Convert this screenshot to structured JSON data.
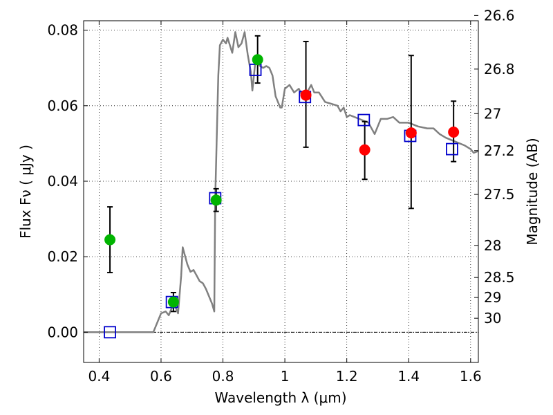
{
  "chart_data": {
    "type": "scatter",
    "xlabel": "Wavelength  λ (μm)",
    "ylabel": "Flux  Fν  ( μJy )",
    "y2label": "Magnitude (AB)",
    "xlim": [
      0.35,
      1.625
    ],
    "ylim": [
      -0.008,
      0.0825
    ],
    "grid": true,
    "x_ticks": [
      0.4,
      0.6,
      0.8,
      1.0,
      1.2,
      1.4,
      1.6
    ],
    "x_tick_labels": [
      "0.4",
      "0.6",
      "0.8",
      "1",
      "1.2",
      "1.4",
      "1.6"
    ],
    "y_ticks": [
      0.0,
      0.02,
      0.04,
      0.06,
      0.08
    ],
    "y_tick_labels": [
      "0.00",
      "0.02",
      "0.04",
      "0.06",
      "0.08"
    ],
    "y2_ticks": [
      {
        "flux": 0.0839,
        "label": "26.6"
      },
      {
        "flux": 0.0697,
        "label": "26.8"
      },
      {
        "flux": 0.0579,
        "label": "27"
      },
      {
        "flux": 0.0481,
        "label": "27.2"
      },
      {
        "flux": 0.0365,
        "label": "27.5"
      },
      {
        "flux": 0.023,
        "label": "28"
      },
      {
        "flux": 0.0145,
        "label": "28.5"
      },
      {
        "flux": 0.0092,
        "label": "29"
      },
      {
        "flux": 0.0037,
        "label": "30"
      }
    ],
    "zero_line": 0.0,
    "colors": {
      "template": "#808080",
      "model": "#0000cc",
      "green": "#00b400",
      "red": "#ff0000",
      "errorbar": "#000000"
    },
    "template_spectrum": {
      "x": [
        0.35,
        0.575,
        0.6,
        0.615,
        0.625,
        0.635,
        0.645,
        0.655,
        0.665,
        0.67,
        0.675,
        0.685,
        0.695,
        0.705,
        0.715,
        0.725,
        0.735,
        0.745,
        0.755,
        0.765,
        0.772,
        0.775,
        0.785,
        0.79,
        0.8,
        0.81,
        0.815,
        0.83,
        0.84,
        0.85,
        0.86,
        0.87,
        0.88,
        0.89,
        0.895,
        0.905,
        0.92,
        0.93,
        0.94,
        0.95,
        0.96,
        0.97,
        0.985,
        0.99,
        1.0,
        1.015,
        1.03,
        1.045,
        1.06,
        1.075,
        1.085,
        1.095,
        1.11,
        1.13,
        1.15,
        1.17,
        1.18,
        1.19,
        1.2,
        1.21,
        1.24,
        1.27,
        1.29,
        1.31,
        1.33,
        1.35,
        1.37,
        1.4,
        1.43,
        1.46,
        1.48,
        1.5,
        1.52,
        1.55,
        1.58,
        1.6,
        1.61,
        1.625
      ],
      "y": [
        0.0,
        0.0,
        0.005,
        0.0055,
        0.0045,
        0.0065,
        0.007,
        0.005,
        0.015,
        0.0225,
        0.021,
        0.018,
        0.016,
        0.0165,
        0.015,
        0.0135,
        0.013,
        0.0115,
        0.0095,
        0.0075,
        0.0055,
        0.035,
        0.068,
        0.076,
        0.0775,
        0.0765,
        0.078,
        0.074,
        0.0795,
        0.0755,
        0.0765,
        0.0795,
        0.0735,
        0.069,
        0.064,
        0.072,
        0.0705,
        0.07,
        0.0705,
        0.07,
        0.068,
        0.0625,
        0.0595,
        0.0595,
        0.0645,
        0.0655,
        0.0635,
        0.0645,
        0.062,
        0.064,
        0.0655,
        0.0635,
        0.0635,
        0.061,
        0.0605,
        0.06,
        0.0585,
        0.0595,
        0.057,
        0.0575,
        0.0565,
        0.0555,
        0.0525,
        0.0565,
        0.0565,
        0.057,
        0.0555,
        0.0555,
        0.0545,
        0.054,
        0.054,
        0.0525,
        0.0515,
        0.0505,
        0.0495,
        0.0485,
        0.0475,
        0.048
      ]
    },
    "model_fluxes": {
      "x": [
        0.435,
        0.635,
        0.775,
        0.905,
        1.065,
        1.255,
        1.405,
        1.54
      ],
      "y": [
        0.0,
        0.008,
        0.0355,
        0.0695,
        0.0623,
        0.0562,
        0.052,
        0.0485
      ]
    },
    "observed_green": {
      "x": [
        0.435,
        0.64,
        0.778,
        0.912
      ],
      "y": [
        0.0245,
        0.008,
        0.035,
        0.0722
      ],
      "yerr_low": [
        0.0158,
        0.0055,
        0.032,
        0.066
      ],
      "yerr_high": [
        0.0332,
        0.0105,
        0.038,
        0.0785
      ]
    },
    "observed_red": {
      "x": [
        1.068,
        1.258,
        1.408,
        1.545
      ],
      "y": [
        0.0628,
        0.0483,
        0.0528,
        0.053
      ],
      "yerr_low": [
        0.049,
        0.0405,
        0.0328,
        0.0452
      ],
      "yerr_high": [
        0.077,
        0.0558,
        0.0733,
        0.0612
      ]
    }
  }
}
